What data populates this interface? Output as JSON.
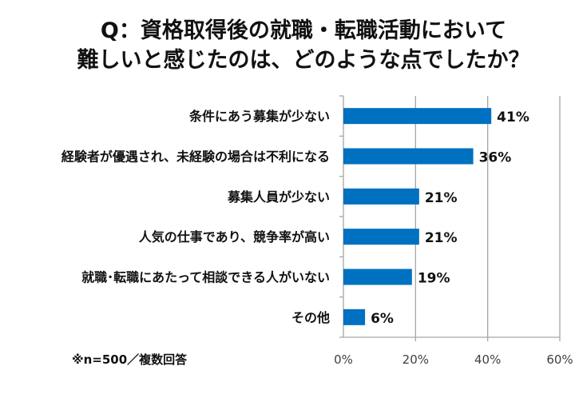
{
  "chart_data": {
    "type": "bar",
    "orientation": "horizontal",
    "title": [
      "Q：資格取得後の就職・転職活動において",
      "難しいと感じたのは、どのような点でしたか？"
    ],
    "categories": [
      "条件にあう募集が少ない",
      "経験者が優遇され、未経験の場合は不利になる",
      "募集人員が少ない",
      "人気の仕事であり、競争率が高い",
      "就職･転職にあたって相談できる人がいない",
      "その他"
    ],
    "values": [
      41,
      36,
      21,
      21,
      19,
      6
    ],
    "data_labels": [
      "41%",
      "36%",
      "21%",
      "21%",
      "19%",
      "6%"
    ],
    "xlim": [
      0,
      60
    ],
    "xticks": [
      0,
      20,
      40,
      60
    ],
    "xtick_labels": [
      "0%",
      "20%",
      "40%",
      "60%"
    ],
    "grid": true,
    "bar_color": "#0070C0",
    "note": "※n=500／複数回答"
  }
}
